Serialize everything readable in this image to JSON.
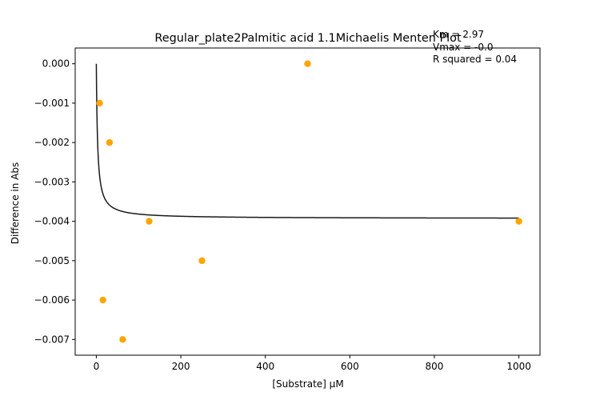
{
  "chart_data": {
    "type": "scatter",
    "title": "Regular_plate2Palmitic acid 1.1Michaelis Menten Plot",
    "xlabel": "[Substrate] μM",
    "ylabel": "Difference in Abs",
    "xlim": [
      -50,
      1050
    ],
    "ylim": [
      -0.0074,
      0.0004
    ],
    "x_ticks": [
      0,
      200,
      400,
      600,
      800,
      1000
    ],
    "x_tick_labels": [
      "0",
      "200",
      "400",
      "600",
      "800",
      "1000"
    ],
    "y_ticks": [
      0.0,
      -0.001,
      -0.002,
      -0.003,
      -0.004,
      -0.005,
      -0.006,
      -0.007
    ],
    "y_tick_labels": [
      "0.000",
      "−0.001",
      "−0.002",
      "−0.003",
      "−0.004",
      "−0.005",
      "−0.006",
      "−0.007"
    ],
    "grid": false,
    "annotations": [
      "Km = 2.97",
      "Vmax = -0.0",
      "R squared = 0.04"
    ],
    "series": [
      {
        "kind": "scatter",
        "color": "#ffa500",
        "x": [
          7.8,
          15.6,
          31.25,
          62.5,
          125,
          250,
          500,
          1000
        ],
        "y": [
          -0.001,
          -0.006,
          -0.002,
          -0.007,
          -0.004,
          -0.005,
          0.0,
          -0.004
        ]
      },
      {
        "kind": "fit_curve",
        "color": "#1a1a1a",
        "model": "michaelis-menten",
        "Km": 2.97,
        "Vmax": -0.00393,
        "x_range": [
          0,
          1000
        ]
      }
    ]
  }
}
